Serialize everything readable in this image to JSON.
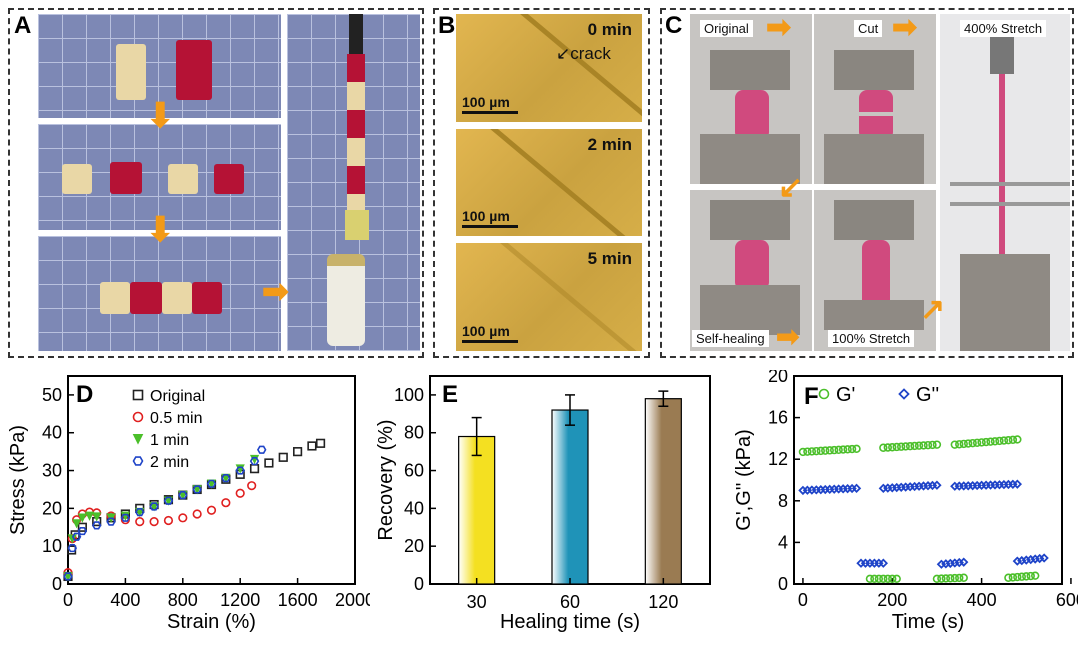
{
  "panels": {
    "a": "A",
    "b": "B",
    "c": "C",
    "d": "D",
    "e": "E",
    "f": "F"
  },
  "panel_b": {
    "times": [
      "0 min",
      "2 min",
      "5 min"
    ],
    "crack_label": "crack",
    "scale_bar": "100 µm"
  },
  "panel_c": {
    "labels": {
      "original": "Original",
      "cut": "Cut",
      "stretch400": "400% Stretch",
      "self_healing": "Self-healing",
      "stretch100": "100% Stretch"
    }
  },
  "colors": {
    "accent": "#f39a17",
    "gel_red": "#b51235",
    "cream": "#e9d7a6"
  },
  "chart_data": [
    {
      "panel": "D",
      "type": "scatter",
      "xlabel": "Strain (%)",
      "ylabel": "Stress (kPa)",
      "xlim": [
        0,
        2000
      ],
      "ylim": [
        0,
        55
      ],
      "xticks": [
        0,
        400,
        800,
        1200,
        1600,
        2000
      ],
      "yticks": [
        0,
        10,
        20,
        30,
        40,
        50
      ],
      "legend": "top-left",
      "series": [
        {
          "name": "Original",
          "marker": "square",
          "color": "#222222",
          "points": [
            [
              0,
              2
            ],
            [
              25,
              9
            ],
            [
              50,
              13
            ],
            [
              100,
              15
            ],
            [
              200,
              16.5
            ],
            [
              300,
              17.5
            ],
            [
              400,
              18.5
            ],
            [
              500,
              20
            ],
            [
              600,
              21
            ],
            [
              700,
              22.3
            ],
            [
              800,
              23.5
            ],
            [
              900,
              25
            ],
            [
              1000,
              26.3
            ],
            [
              1100,
              27.7
            ],
            [
              1200,
              29
            ],
            [
              1300,
              30.5
            ],
            [
              1400,
              32
            ],
            [
              1500,
              33.5
            ],
            [
              1600,
              35
            ],
            [
              1700,
              36.5
            ],
            [
              1760,
              37.2
            ]
          ]
        },
        {
          "name": "0.5 min",
          "marker": "circle",
          "color": "#e02020",
          "points": [
            [
              0,
              3
            ],
            [
              30,
              12
            ],
            [
              60,
              17
            ],
            [
              100,
              18.5
            ],
            [
              150,
              19
            ],
            [
              200,
              18.8
            ],
            [
              300,
              18
            ],
            [
              400,
              17
            ],
            [
              500,
              16.5
            ],
            [
              600,
              16.5
            ],
            [
              700,
              16.8
            ],
            [
              800,
              17.5
            ],
            [
              900,
              18.5
            ],
            [
              1000,
              19.5
            ],
            [
              1100,
              21.5
            ],
            [
              1200,
              24
            ],
            [
              1280,
              26
            ]
          ]
        },
        {
          "name": "1 min",
          "marker": "triangle",
          "color": "#4bbf2a",
          "points": [
            [
              0,
              2
            ],
            [
              30,
              12
            ],
            [
              60,
              16
            ],
            [
              100,
              17.5
            ],
            [
              150,
              18
            ],
            [
              200,
              17.8
            ],
            [
              300,
              17.5
            ],
            [
              400,
              18
            ],
            [
              500,
              19
            ],
            [
              600,
              20.5
            ],
            [
              700,
              22
            ],
            [
              800,
              23.5
            ],
            [
              900,
              25
            ],
            [
              1000,
              26.5
            ],
            [
              1100,
              28
            ],
            [
              1200,
              30.5
            ],
            [
              1300,
              33
            ]
          ]
        },
        {
          "name": "2 min",
          "marker": "hexagon",
          "color": "#1f44c8",
          "points": [
            [
              0,
              2
            ],
            [
              30,
              9.5
            ],
            [
              60,
              12.5
            ],
            [
              100,
              14
            ],
            [
              200,
              15.5
            ],
            [
              300,
              16.5
            ],
            [
              400,
              17.5
            ],
            [
              500,
              19
            ],
            [
              600,
              20.5
            ],
            [
              700,
              22
            ],
            [
              800,
              23.5
            ],
            [
              900,
              25
            ],
            [
              1000,
              26.5
            ],
            [
              1100,
              28
            ],
            [
              1200,
              30
            ],
            [
              1300,
              32.5
            ],
            [
              1350,
              35.5
            ]
          ]
        }
      ]
    },
    {
      "panel": "E",
      "type": "bar",
      "xlabel": "Healing time (s)",
      "ylabel": "Recovery (%)",
      "ylim": [
        0,
        110
      ],
      "yticks": [
        0,
        20,
        40,
        60,
        80,
        100
      ],
      "categories": [
        "30",
        "60",
        "120"
      ],
      "values": [
        78,
        92,
        98
      ],
      "errors": [
        10,
        8,
        4
      ],
      "bar_colors": [
        "#f4e021",
        "#1f93b8",
        "#9a7b52"
      ]
    },
    {
      "panel": "F",
      "type": "scatter",
      "xlabel": "Time (s)",
      "ylabel": "G',G'' (kPa)",
      "xlim": [
        -20,
        580
      ],
      "ylim": [
        0,
        20
      ],
      "xticks": [
        0,
        200,
        400,
        600
      ],
      "yticks": [
        0,
        4,
        8,
        12,
        16,
        20
      ],
      "legend": "top",
      "series": [
        {
          "name": "G'",
          "marker": "circle",
          "color": "#4bbf2a",
          "segments": [
            [
              0,
              120,
              12.7,
              13.0
            ],
            [
              150,
              210,
              0.5,
              0.5
            ],
            [
              180,
              300,
              13.1,
              13.4
            ],
            [
              300,
              360,
              0.5,
              0.6
            ],
            [
              340,
              480,
              13.4,
              13.9
            ],
            [
              460,
              520,
              0.6,
              0.8
            ]
          ]
        },
        {
          "name": "G''",
          "marker": "diamond",
          "color": "#1f44c8",
          "segments": [
            [
              0,
              120,
              9.0,
              9.2
            ],
            [
              130,
              180,
              2.0,
              2.0
            ],
            [
              180,
              300,
              9.2,
              9.5
            ],
            [
              310,
              360,
              1.9,
              2.1
            ],
            [
              340,
              480,
              9.4,
              9.6
            ],
            [
              480,
              540,
              2.2,
              2.5
            ]
          ]
        }
      ]
    }
  ]
}
